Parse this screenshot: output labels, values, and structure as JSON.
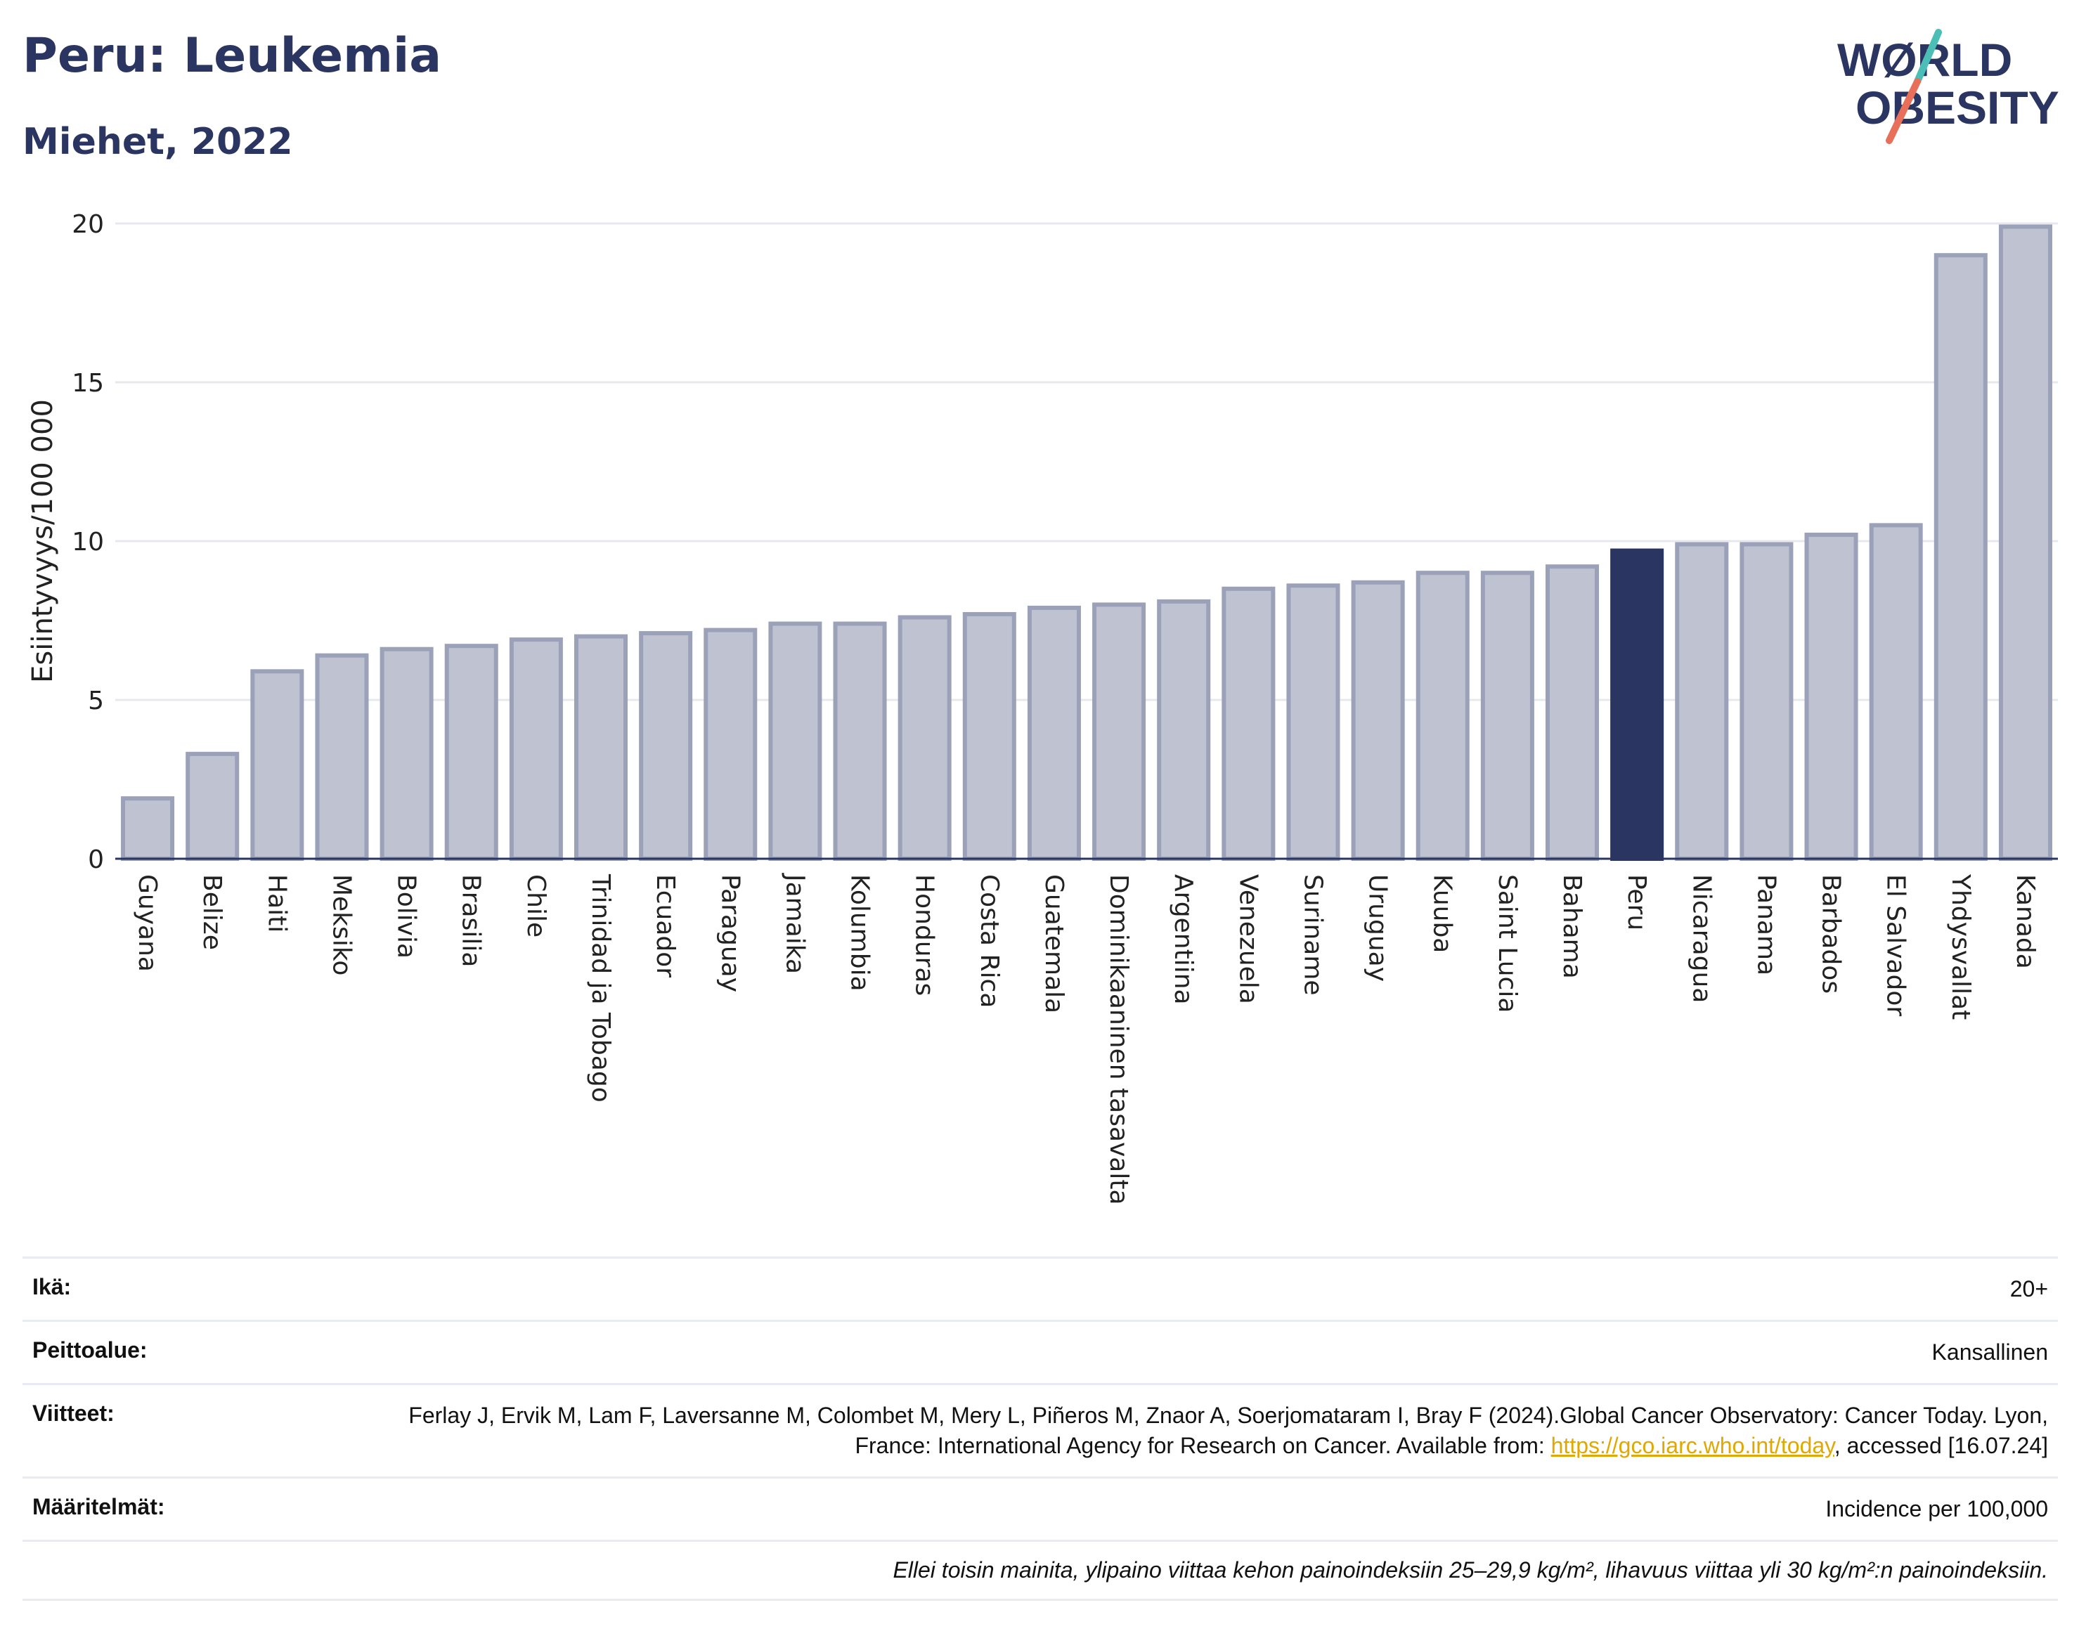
{
  "header": {
    "title": "Peru: Leukemia",
    "subtitle": "Miehet, 2022"
  },
  "logo": {
    "line1": "WØRLD",
    "line2": "OBESITY",
    "stripe_colors": [
      "#4bbfb6",
      "#e86f59"
    ],
    "text_color": "#2b3562"
  },
  "chart_data": {
    "type": "bar",
    "ylabel": "Esiintyvyys/100 000",
    "xlabel": "",
    "ylim": [
      0,
      20
    ],
    "yticks": [
      0,
      5,
      10,
      15,
      20
    ],
    "grid": true,
    "highlight": "Peru",
    "colors": {
      "bar": "#bfc3d1",
      "bar_border": "#9ba1b9",
      "highlight": "#2b3562"
    },
    "categories": [
      "Guyana",
      "Belize",
      "Haiti",
      "Meksiko",
      "Bolivia",
      "Brasilia",
      "Chile",
      "Trinidad ja Tobago",
      "Ecuador",
      "Paraguay",
      "Jamaika",
      "Kolumbia",
      "Honduras",
      "Costa Rica",
      "Guatemala",
      "Dominikaaninen tasavalta",
      "Argentiina",
      "Venezuela",
      "Suriname",
      "Uruguay",
      "Kuuba",
      "Saint Lucia",
      "Bahama",
      "Peru",
      "Nicaragua",
      "Panama",
      "Barbados",
      "El Salvador",
      "Yhdysvallat",
      "Kanada"
    ],
    "values": [
      1.9,
      3.3,
      5.9,
      6.4,
      6.6,
      6.7,
      6.9,
      7.0,
      7.1,
      7.2,
      7.4,
      7.4,
      7.6,
      7.7,
      7.9,
      8.0,
      8.1,
      8.5,
      8.6,
      8.7,
      9.0,
      9.0,
      9.2,
      9.7,
      9.9,
      9.9,
      10.2,
      10.5,
      19.0,
      19.9
    ]
  },
  "info": {
    "age_label": "Ikä:",
    "age_value": "20+",
    "coverage_label": "Peittoalue:",
    "coverage_value": "Kansallinen",
    "refs_label": "Viitteet:",
    "refs_text_1": "Ferlay J, Ervik M, Lam F, Laversanne M, Colombet M, Mery L, Piñeros M, Znaor A, Soerjomataram I, Bray F (2024).Global Cancer Observatory: Cancer Today. Lyon, France: International Agency for Research on Cancer. Available from: ",
    "refs_link": "https://gco.iarc.who.int/today",
    "refs_text_2": ", accessed [16.07.24]",
    "defs_label": "Määritelmät:",
    "defs_value": "Incidence per 100,000",
    "footnote": "Ellei toisin mainita, ylipaino viittaa kehon painoindeksiin 25–29,9 kg/m², lihavuus viittaa yli 30 kg/m²:n painoindeksiin."
  }
}
